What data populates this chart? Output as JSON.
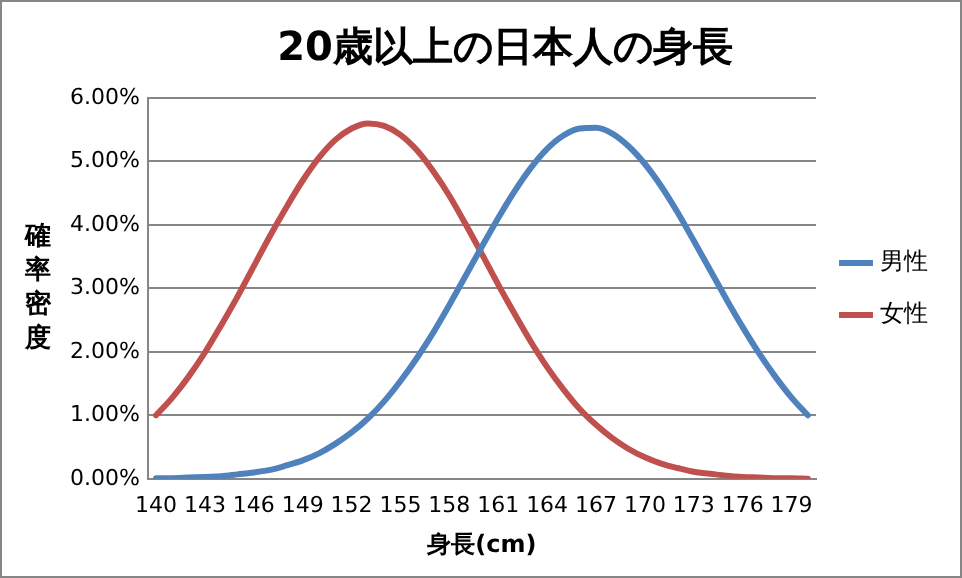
{
  "chart_data": {
    "type": "line",
    "title": "20歳以上の日本人の身長",
    "xlabel": "身長(cm)",
    "ylabel": "確率密度",
    "categories": [
      "140",
      null,
      null,
      "143",
      null,
      null,
      "146",
      null,
      null,
      "149",
      null,
      null,
      "152",
      null,
      null,
      "155",
      null,
      null,
      "158",
      null,
      null,
      "161",
      null,
      null,
      "164",
      null,
      null,
      "167",
      null,
      null,
      "170",
      null,
      null,
      "173",
      null,
      null,
      "176",
      null,
      null,
      "179",
      null
    ],
    "series": [
      {
        "name": "男性",
        "color": "#4f81bd",
        "values": [
          0.01,
          0.01,
          0.02,
          0.03,
          0.04,
          0.07,
          0.1,
          0.14,
          0.21,
          0.29,
          0.4,
          0.55,
          0.73,
          0.95,
          1.22,
          1.54,
          1.9,
          2.3,
          2.74,
          3.2,
          3.66,
          4.11,
          4.53,
          4.9,
          5.2,
          5.41,
          5.52,
          5.53,
          5.44,
          5.24,
          4.96,
          4.61,
          4.2,
          3.75,
          3.29,
          2.83,
          2.39,
          1.98,
          1.61,
          1.28,
          1.0
        ]
      },
      {
        "name": "女性",
        "color": "#c0504d",
        "values": [
          1.0,
          1.28,
          1.61,
          1.99,
          2.42,
          2.87,
          3.35,
          3.83,
          4.28,
          4.7,
          5.06,
          5.34,
          5.52,
          5.6,
          5.56,
          5.42,
          5.18,
          4.85,
          4.46,
          4.01,
          3.54,
          3.06,
          2.6,
          2.16,
          1.76,
          1.41,
          1.1,
          0.85,
          0.64,
          0.47,
          0.34,
          0.24,
          0.17,
          0.11,
          0.08,
          0.05,
          0.03,
          0.02,
          0.01,
          0.01,
          0.0
        ]
      }
    ],
    "ylim": [
      0,
      6
    ],
    "yticks": [
      {
        "value": 0,
        "label": "0.00%"
      },
      {
        "value": 1,
        "label": "1.00%"
      },
      {
        "value": 2,
        "label": "2.00%"
      },
      {
        "value": 3,
        "label": "3.00%"
      },
      {
        "value": 4,
        "label": "4.00%"
      },
      {
        "value": 5,
        "label": "5.00%"
      },
      {
        "value": 6,
        "label": "6.00%"
      }
    ],
    "grid": "y",
    "legend": "right",
    "marker": "none",
    "line_style": "solid"
  }
}
